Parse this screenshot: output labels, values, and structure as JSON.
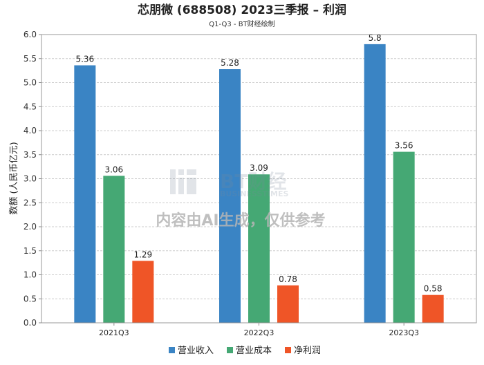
{
  "chart_data": {
    "type": "bar",
    "title": "芯朋微 (688508) 2023三季报 – 利润",
    "subtitle": "Q1-Q3 - BT财经绘制",
    "ylabel": "数额 (人民币亿元)",
    "xlabel": "",
    "categories": [
      "2021Q3",
      "2022Q3",
      "2023Q3"
    ],
    "series": [
      {
        "name": "营业收入",
        "color": "#3a84c4",
        "values": [
          5.36,
          5.28,
          5.8
        ]
      },
      {
        "name": "营业成本",
        "color": "#45a874",
        "values": [
          3.06,
          3.09,
          3.56
        ]
      },
      {
        "name": "净利润",
        "color": "#ef5527",
        "values": [
          1.29,
          0.78,
          0.58
        ]
      }
    ],
    "data_labels": [
      [
        "5.36",
        "5.28",
        "5.8"
      ],
      [
        "3.06",
        "3.09",
        "3.56"
      ],
      [
        "1.29",
        "0.78",
        "0.58"
      ]
    ],
    "ylim": [
      0,
      6.0
    ],
    "yticks": [
      "0.0",
      "0.5",
      "1.0",
      "1.5",
      "2.0",
      "2.5",
      "3.0",
      "3.5",
      "4.0",
      "4.5",
      "5.0",
      "5.5",
      "6.0"
    ],
    "grid": true,
    "legend_position": "bottom"
  },
  "watermark": {
    "logo": "BT财经",
    "logo_sub": "BUSINESSTIMES",
    "text": "内容由AI生成，仅供参考"
  }
}
